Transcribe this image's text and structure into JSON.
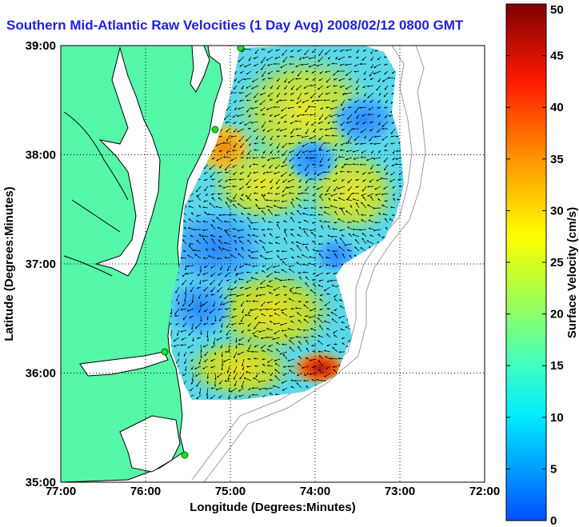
{
  "title": "Southern Mid-Atlantic Raw Velocities (1 Day Avg) 2008/02/12 0800 GMT",
  "map": {
    "x_label": "Longitude (Degrees:Minutes)",
    "y_label": "Latitude (Degrees:Minutes)",
    "lon_ticks": [
      "77:00",
      "76:00",
      "75:00",
      "74:00",
      "73:00",
      "72:00"
    ],
    "lat_ticks": [
      "39:00",
      "38:00",
      "37:00",
      "36:00",
      "35:00"
    ],
    "lon_range": [
      -77,
      -72
    ],
    "lat_range": [
      35,
      39
    ],
    "grid": true,
    "colors": {
      "land": "#55f7a8",
      "coastline": "#000000",
      "isobath": "#9a9a9a",
      "station": "#22dd22"
    }
  },
  "colorbar": {
    "label": "Surface Velocity (cm/s)",
    "ticks": [
      "0",
      "5",
      "10",
      "15",
      "20",
      "25",
      "30",
      "35",
      "40",
      "45",
      "50"
    ],
    "range": [
      0,
      50
    ]
  }
}
